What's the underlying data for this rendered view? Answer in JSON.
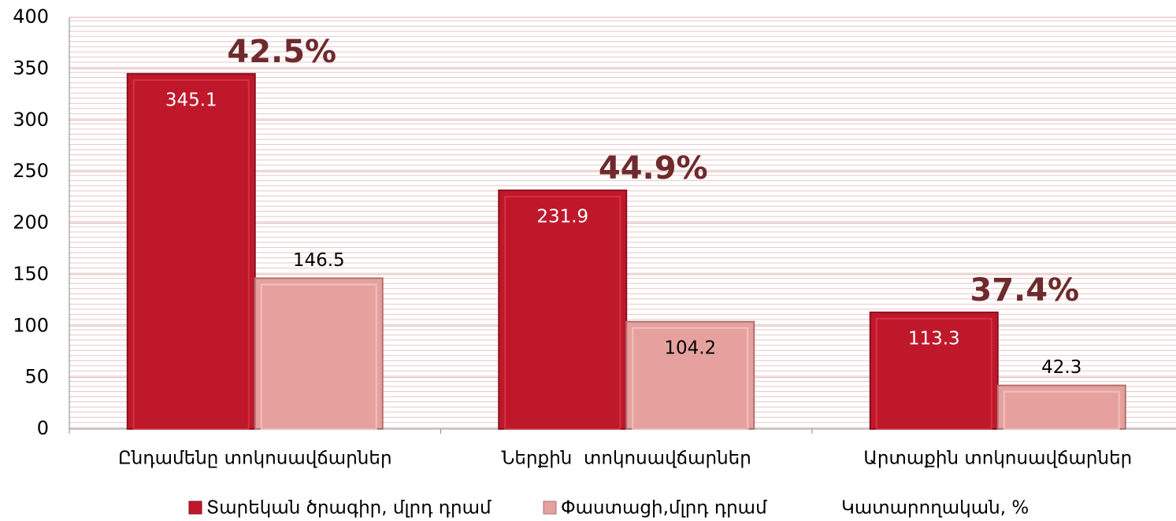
{
  "chart_data": {
    "type": "bar",
    "categories": [
      "Ընդամենը տոկոսավճարներ",
      "Ներքին  տոկոսավճարներ",
      "Արտաքին տոկոսավճարներ"
    ],
    "series": [
      {
        "name": "Տարեկան ծրագիր, մլրդ դրամ",
        "color": "#c0182b",
        "values": [
          345.1,
          231.9,
          113.3
        ]
      },
      {
        "name": "Փաստացի,մլրդ դրամ",
        "color": "#e6a19f",
        "values": [
          146.5,
          104.2,
          42.3
        ]
      },
      {
        "name": "Կատարողական, %",
        "color": "#6e2a2c",
        "values": [
          42.5,
          44.9,
          37.4
        ],
        "value_labels": [
          "42.5%",
          "44.9%",
          "37.4%"
        ]
      }
    ],
    "ylim": [
      0,
      400
    ],
    "yticks": [
      0,
      50,
      100,
      150,
      200,
      250,
      300,
      350,
      400
    ],
    "grid": true
  }
}
